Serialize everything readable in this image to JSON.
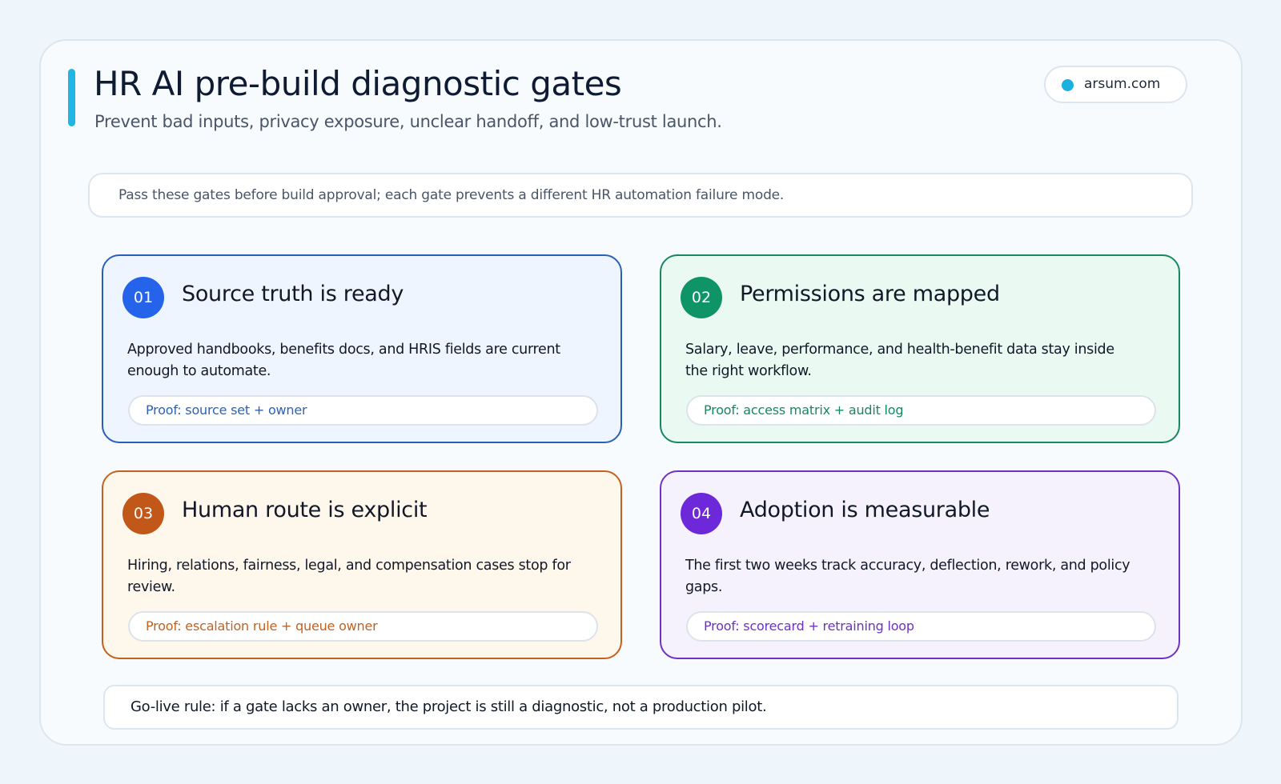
{
  "header": {
    "title": "HR AI pre-build diagnostic gates",
    "subtitle": "Prevent bad inputs, privacy exposure, unclear handoff, and low-trust launch.",
    "badge": "arsum.com"
  },
  "intro": "Pass these gates before build approval; each gate prevents a different HR automation failure mode.",
  "gates": [
    {
      "number": "01",
      "title": "Source truth is ready",
      "body": "Approved handbooks, benefits docs, and HRIS fields are current enough to automate.",
      "proof": "Proof: source set + owner"
    },
    {
      "number": "02",
      "title": "Permissions are mapped",
      "body": "Salary, leave, performance, and health-benefit data stay inside the right workflow.",
      "proof": "Proof: access matrix + audit log"
    },
    {
      "number": "03",
      "title": "Human route is explicit",
      "body": "Hiring, relations, fairness, legal, and compensation cases stop for review.",
      "proof": "Proof: escalation rule + queue owner"
    },
    {
      "number": "04",
      "title": "Adoption is measurable",
      "body": "The first two weeks track accuracy, deflection, rework, and policy gaps.",
      "proof": "Proof: scorecard + retraining loop"
    }
  ],
  "footer": "Go-live rule: if a gate lacks an owner, the project is still a diagnostic, not a production pilot."
}
